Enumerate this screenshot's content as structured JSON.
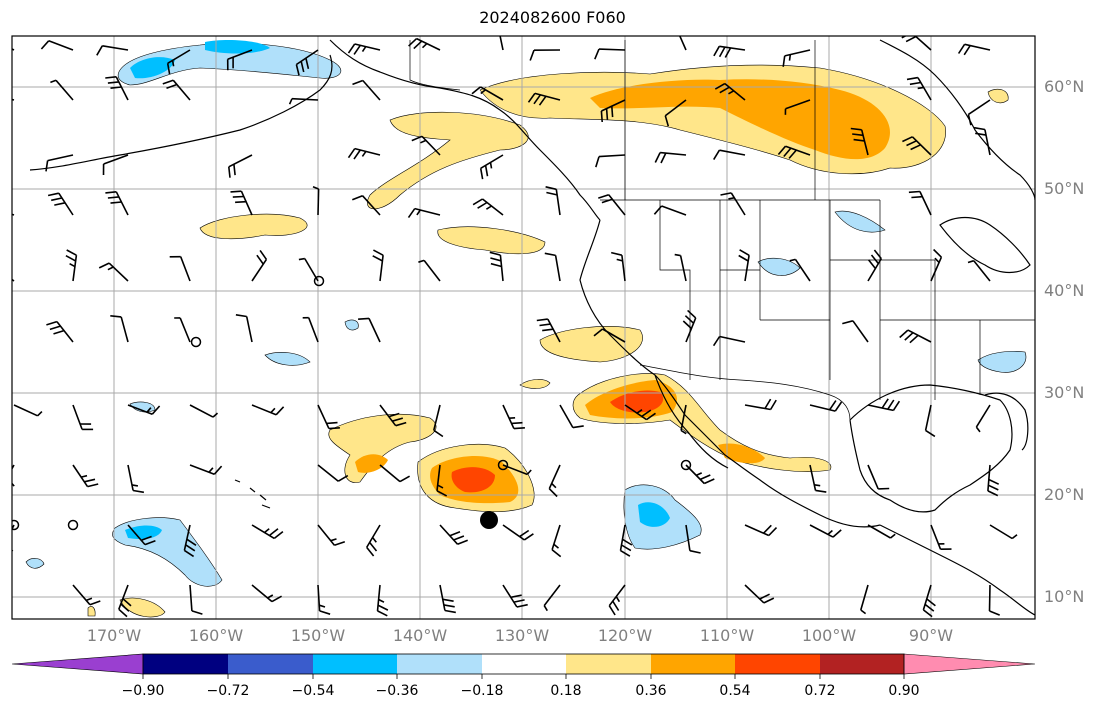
{
  "title": "2024082600 F060",
  "lat_labels": [
    "60°N",
    "50°N",
    "40°N",
    "30°N",
    "20°N",
    "10°N"
  ],
  "lon_labels": [
    "170°W",
    "160°W",
    "150°W",
    "140°W",
    "130°W",
    "120°W",
    "110°W",
    "100°W",
    "90°W"
  ],
  "colorbar": {
    "tick_labels": [
      "−0.90",
      "−0.72",
      "−0.54",
      "−0.36",
      "−0.18",
      "0.18",
      "0.36",
      "0.54",
      "0.72",
      "0.90"
    ],
    "colors": [
      "#9a3fd0",
      "#000080",
      "#3a5ccc",
      "#00bfff",
      "#b0e0fa",
      "#ffffff",
      "#ffe68a",
      "#ffa500",
      "#ff4500",
      "#b22222",
      "#ff8cb0"
    ]
  },
  "contour_colors": {
    "light_yellow": "#ffe68a",
    "orange": "#ffa500",
    "red_orange": "#ff4500",
    "light_blue": "#b0e0fa",
    "sky_blue": "#00bfff"
  },
  "map": {
    "lon_range": [
      -180,
      -80
    ],
    "lat_range": [
      8,
      65
    ],
    "gridlines": true,
    "features": [
      "coastlines",
      "country borders",
      "US state borders",
      "wind barbs",
      "hurricane center marker"
    ]
  }
}
